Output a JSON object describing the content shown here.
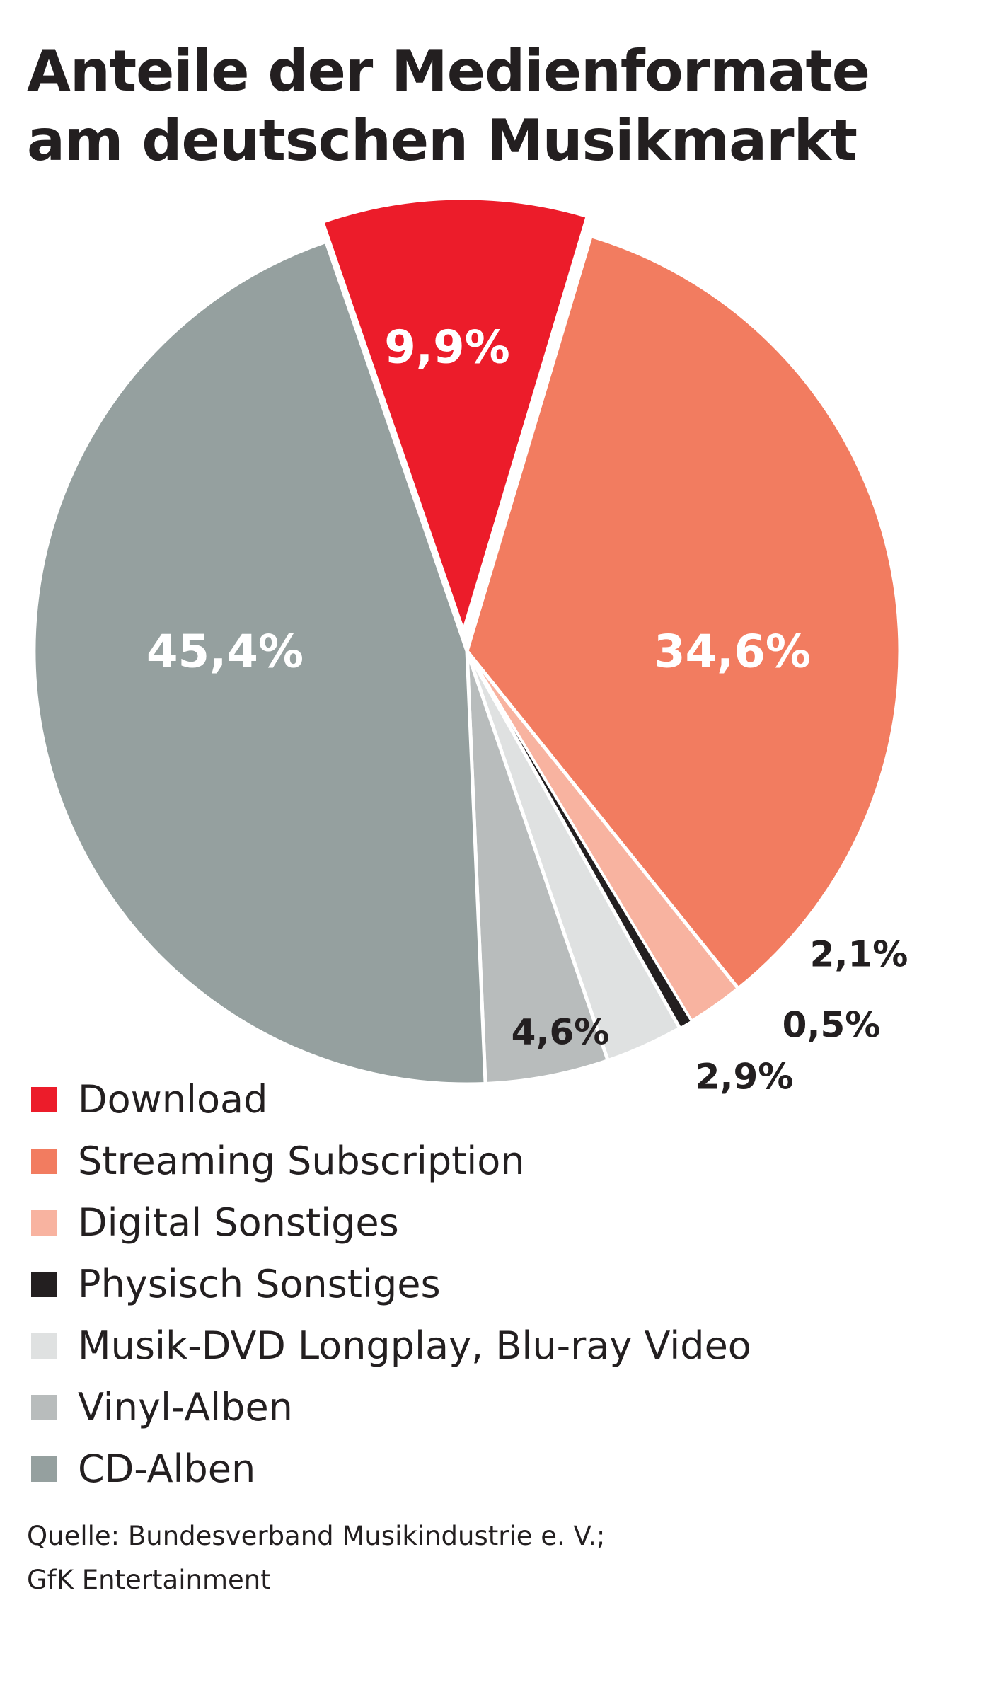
{
  "chart_data": {
    "type": "pie",
    "title_lines": [
      "Anteile der Medienformate",
      "am deutschen Musikmarkt"
    ],
    "unit": "%",
    "slices": [
      {
        "name": "Download",
        "value": 9.9,
        "label": "9,9%",
        "color": "#ec1c2a",
        "label_color": "#ffffff"
      },
      {
        "name": "Streaming Subscription",
        "value": 34.6,
        "label": "34,6%",
        "color": "#f27c60",
        "label_color": "#ffffff"
      },
      {
        "name": "Digital Sonstiges",
        "value": 2.1,
        "label": "2,1%",
        "color": "#f8b3a0",
        "label_color": "#231f20"
      },
      {
        "name": "Physisch Sonstiges",
        "value": 0.5,
        "label": "0,5%",
        "color": "#231f20",
        "label_color": "#231f20"
      },
      {
        "name": "Musik-DVD Longplay, Blu-ray Video",
        "value": 2.9,
        "label": "2,9%",
        "color": "#dfe1e1",
        "label_color": "#231f20"
      },
      {
        "name": "Vinyl-Alben",
        "value": 4.6,
        "label": "4,6%",
        "color": "#b8bcbc",
        "label_color": "#231f20"
      },
      {
        "name": "CD-Alben",
        "value": 45.4,
        "label": "45,4%",
        "color": "#95a09f",
        "label_color": "#ffffff"
      }
    ],
    "legend_position": "bottom-left",
    "source_lines": [
      "Quelle: Bundesverband Musikindustrie e. V.;",
      "GfK Entertainment"
    ]
  }
}
